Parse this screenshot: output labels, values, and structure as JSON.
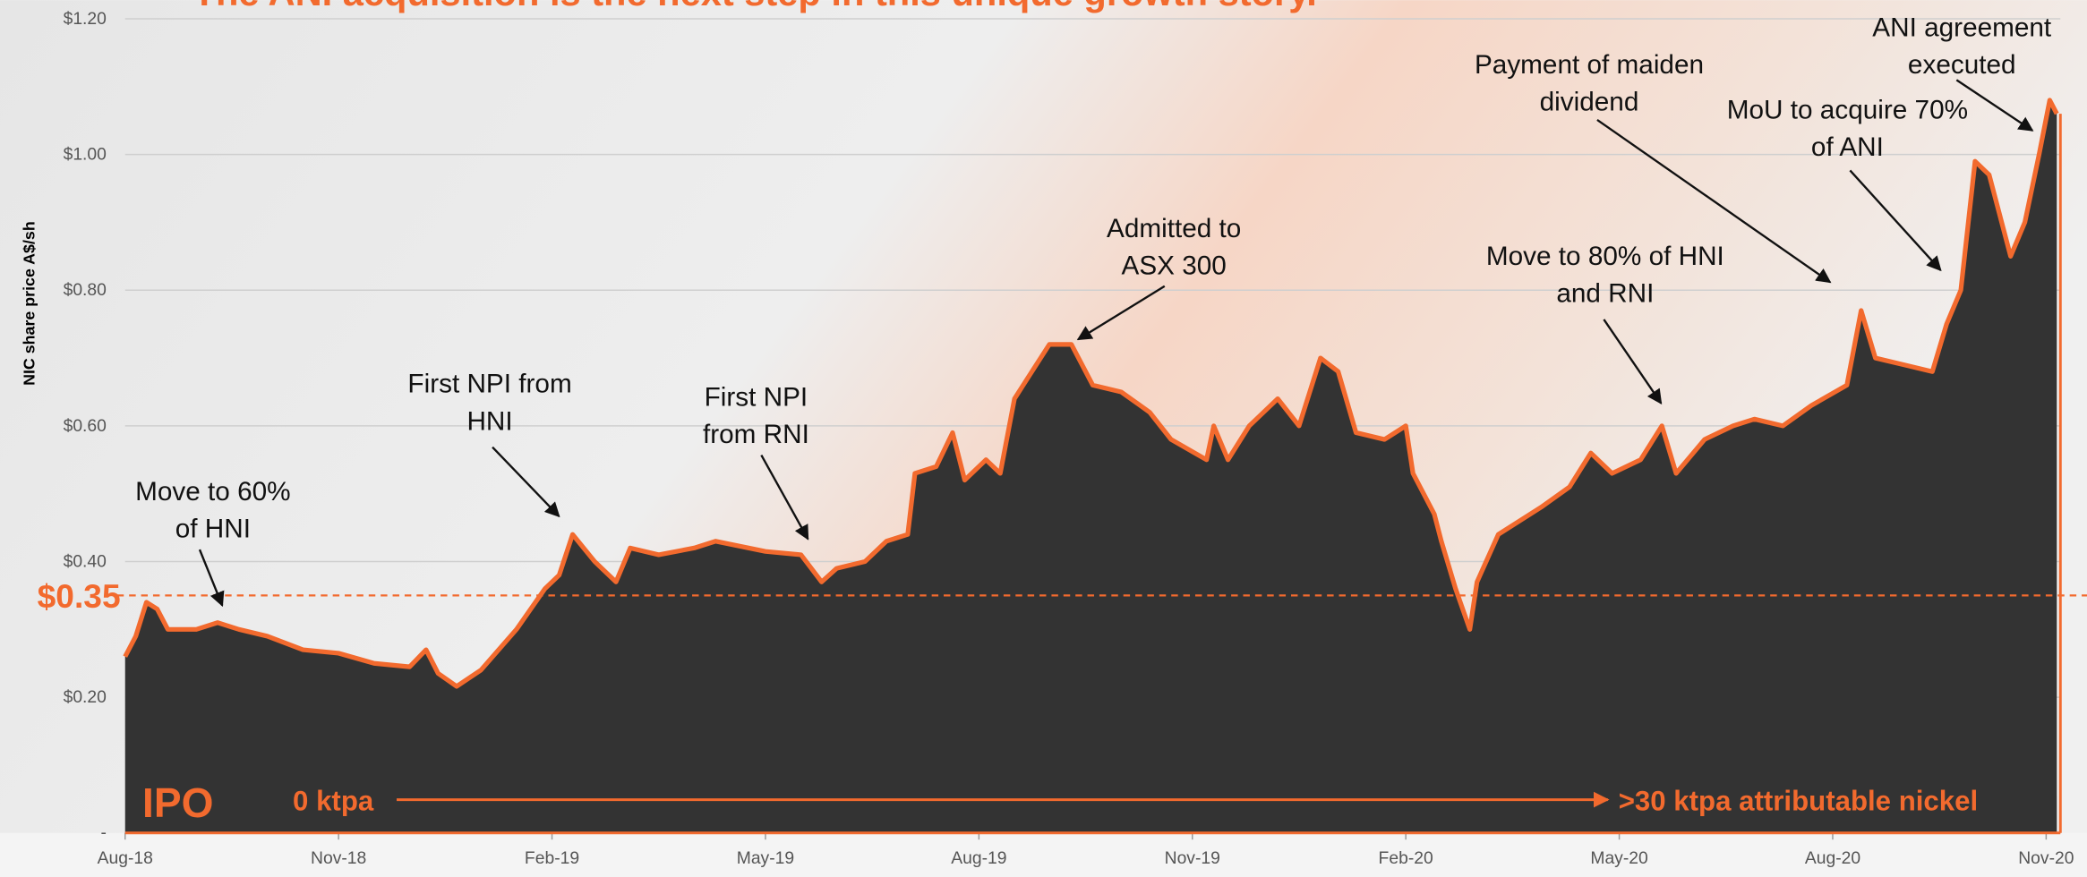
{
  "chart_data": {
    "type": "area",
    "title": "The ANI acquisition is the next step in this unique growth story.",
    "y_label": "NIC share price A$/sh",
    "x": [
      0,
      0.15,
      0.3,
      0.45,
      0.6,
      1.0,
      1.3,
      1.6,
      2.0,
      2.5,
      3.0,
      3.5,
      4.0,
      4.23,
      4.4,
      4.66,
      5.0,
      5.5,
      5.9,
      6.1,
      6.29,
      6.6,
      6.9,
      7.1,
      7.5,
      8.0,
      8.3,
      9.0,
      9.5,
      9.79,
      10.0,
      10.4,
      10.7,
      11.0,
      11.1,
      11.4,
      11.63,
      11.8,
      12.1,
      12.3,
      12.5,
      12.99,
      13.3,
      13.6,
      14.0,
      14.4,
      14.7,
      15.2,
      15.3,
      15.5,
      15.8,
      16.2,
      16.5,
      16.8,
      17.05,
      17.3,
      17.7,
      18.0,
      18.1,
      18.4,
      18.5,
      18.7,
      18.9,
      19.0,
      19.3,
      19.6,
      19.9,
      20.3,
      20.6,
      20.9,
      21.3,
      21.6,
      21.8,
      22.2,
      22.6,
      22.9,
      23.3,
      23.7,
      24.2,
      24.4,
      24.6,
      25.0,
      25.4,
      25.6,
      25.8,
      26.0,
      26.2,
      26.5,
      26.7,
      26.9,
      27.05,
      27.15
    ],
    "values": [
      0.26,
      0.29,
      0.34,
      0.33,
      0.3,
      0.3,
      0.31,
      0.3,
      0.29,
      0.27,
      0.265,
      0.25,
      0.245,
      0.27,
      0.235,
      0.216,
      0.24,
      0.3,
      0.36,
      0.38,
      0.44,
      0.4,
      0.37,
      0.42,
      0.41,
      0.42,
      0.43,
      0.415,
      0.41,
      0.37,
      0.39,
      0.4,
      0.43,
      0.44,
      0.53,
      0.54,
      0.59,
      0.52,
      0.55,
      0.53,
      0.64,
      0.72,
      0.72,
      0.66,
      0.65,
      0.62,
      0.58,
      0.55,
      0.6,
      0.55,
      0.6,
      0.64,
      0.6,
      0.7,
      0.68,
      0.59,
      0.58,
      0.6,
      0.53,
      0.47,
      0.43,
      0.36,
      0.3,
      0.37,
      0.44,
      0.46,
      0.48,
      0.51,
      0.56,
      0.53,
      0.55,
      0.6,
      0.53,
      0.58,
      0.6,
      0.61,
      0.6,
      0.63,
      0.66,
      0.77,
      0.7,
      0.69,
      0.68,
      0.75,
      0.8,
      0.99,
      0.97,
      0.85,
      0.9,
      1.0,
      1.08,
      1.06
    ],
    "color": "#f26a2e",
    "fill_color": "#333333",
    "xlim": [
      0,
      27.2
    ],
    "xticks": [
      {
        "value": 0,
        "label": "Aug-18"
      },
      {
        "value": 3,
        "label": "Nov-18"
      },
      {
        "value": 6,
        "label": "Feb-19"
      },
      {
        "value": 9,
        "label": "May-19"
      },
      {
        "value": 12,
        "label": "Aug-19"
      },
      {
        "value": 15,
        "label": "Nov-19"
      },
      {
        "value": 18,
        "label": "Feb-20"
      },
      {
        "value": 21,
        "label": "May-20"
      },
      {
        "value": 24,
        "label": "Aug-20"
      },
      {
        "value": 27,
        "label": "Nov-20"
      }
    ],
    "ylim": [
      0,
      1.2
    ],
    "yticks": [
      {
        "value": 0,
        "label": "-"
      },
      {
        "value": 0.2,
        "label": "$0.20"
      },
      {
        "value": 0.4,
        "label": "$0.40"
      },
      {
        "value": 0.6,
        "label": "$0.60"
      },
      {
        "value": 0.8,
        "label": "$0.80"
      },
      {
        "value": 1.0,
        "label": "$1.00"
      },
      {
        "value": 1.2,
        "label": "$1.20"
      }
    ],
    "grid": true,
    "reference_line": {
      "value": 0.35,
      "label": "$0.35"
    },
    "annotations": [
      {
        "lines": [
          "Move to 60%",
          "of HNI"
        ]
      },
      {
        "lines": [
          "First NPI from",
          "HNI"
        ]
      },
      {
        "lines": [
          "First NPI",
          "from RNI"
        ]
      },
      {
        "lines": [
          "Admitted to",
          "ASX 300"
        ]
      },
      {
        "lines": [
          "Payment of maiden",
          "dividend"
        ]
      },
      {
        "lines": [
          "Move to 80% of  HNI",
          "and RNI"
        ]
      },
      {
        "lines": [
          "MoU to acquire 70%",
          "of ANI"
        ]
      },
      {
        "lines": [
          "ANI agreement",
          "executed"
        ]
      }
    ],
    "footer": {
      "start": "IPO",
      "from": "0 ktpa",
      "to": ">30 ktpa attributable nickel"
    }
  }
}
